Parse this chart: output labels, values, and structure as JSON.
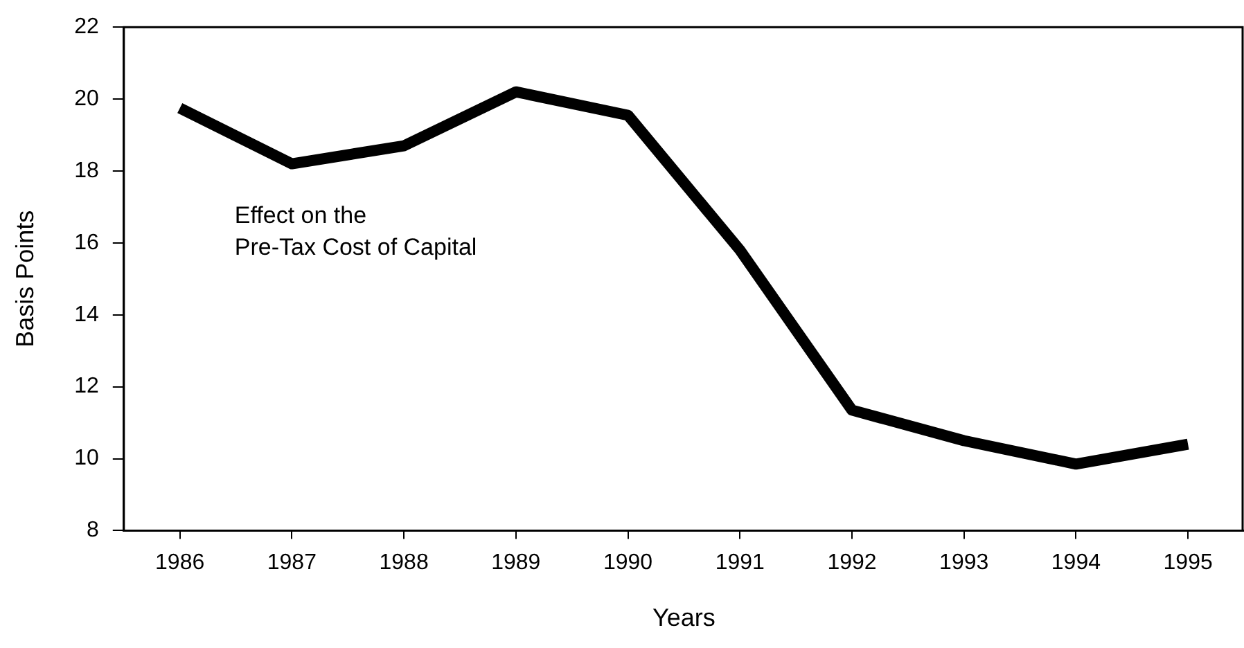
{
  "chart_data": {
    "type": "line",
    "xlabel": "Years",
    "ylabel": "Basis Points",
    "categories": [
      "1986",
      "1987",
      "1988",
      "1989",
      "1990",
      "1991",
      "1992",
      "1993",
      "1994",
      "1995"
    ],
    "series": [
      {
        "color": "#000000",
        "values": [
          19.75,
          18.2,
          18.7,
          20.2,
          19.55,
          15.8,
          11.35,
          10.5,
          9.85,
          10.4
        ]
      }
    ],
    "ylim": [
      8,
      22
    ],
    "yticks": [
      8,
      10,
      12,
      14,
      16,
      18,
      20,
      22
    ],
    "grid": false,
    "legend": false,
    "marker": "none",
    "line_style": "solid",
    "annotations": [
      "Effect on the\nPre-Tax Cost of Capital"
    ]
  }
}
